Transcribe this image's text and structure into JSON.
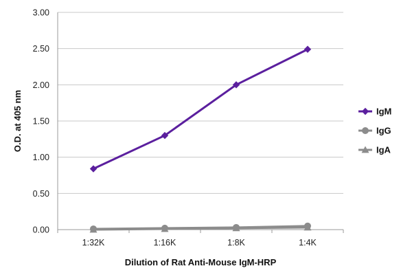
{
  "chart_data": {
    "type": "line",
    "title": "",
    "xlabel": "Dilution of Rat Anti-Mouse IgM-HRP",
    "ylabel": "O.D. at 405 nm",
    "categories": [
      "1:32K",
      "1:16K",
      "1:8K",
      "1:4K"
    ],
    "ylim": [
      0,
      3
    ],
    "yticks": [
      "0.00",
      "0.50",
      "1.00",
      "1.50",
      "2.00",
      "2.50",
      "3.00"
    ],
    "grid": true,
    "legend_position": "right",
    "series": [
      {
        "name": "IgM",
        "values": [
          0.84,
          1.3,
          2.0,
          2.49
        ],
        "color": "#5b1f9e",
        "marker": "diamond"
      },
      {
        "name": "IgG",
        "values": [
          0.01,
          0.02,
          0.03,
          0.05
        ],
        "color": "#8c8c8c",
        "marker": "circle"
      },
      {
        "name": "IgA",
        "values": [
          0.0,
          0.01,
          0.02,
          0.03
        ],
        "color": "#8c8c8c",
        "marker": "triangle"
      }
    ]
  }
}
